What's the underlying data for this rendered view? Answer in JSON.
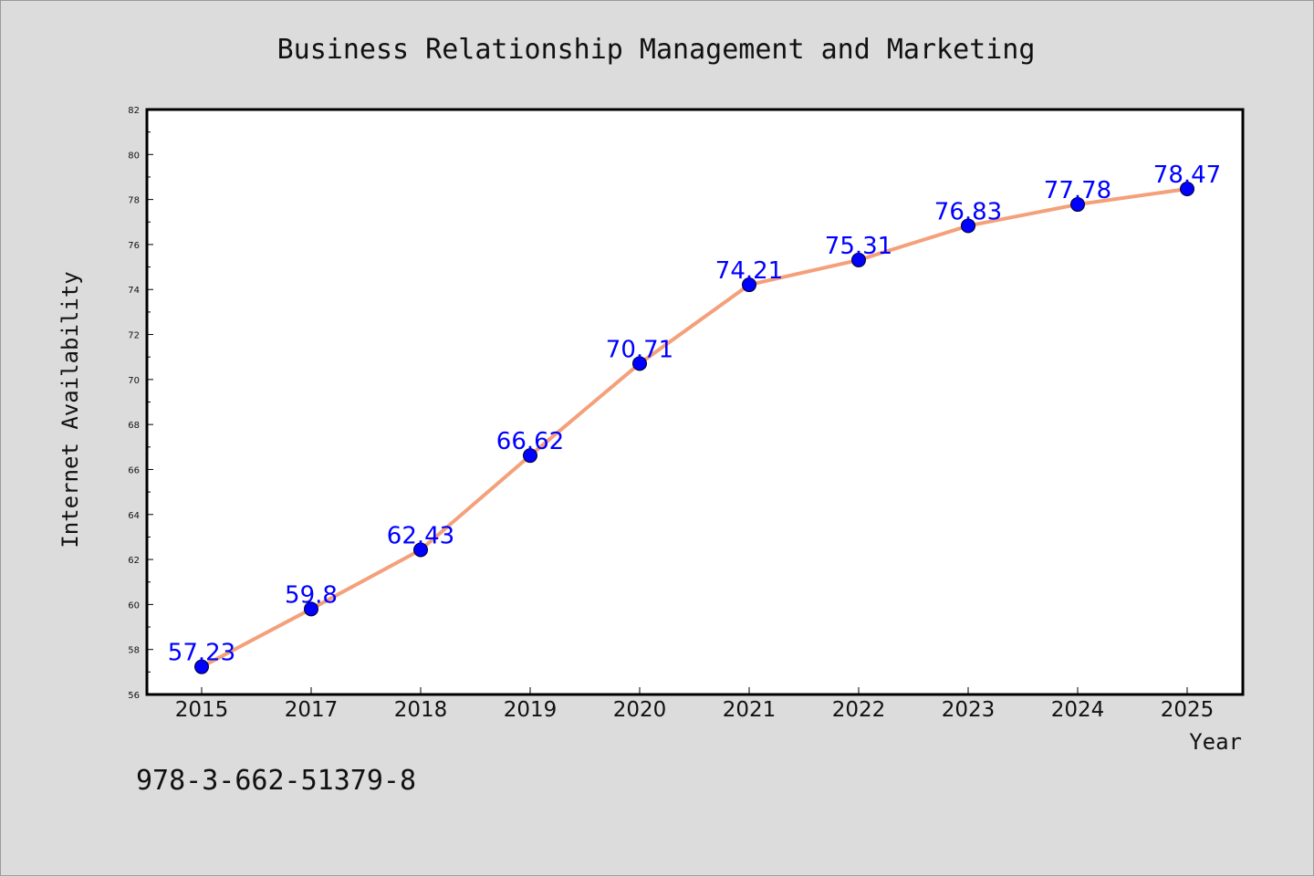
{
  "chart_data": {
    "type": "line",
    "title": "Business Relationship Management and Marketing",
    "xlabel": "Year",
    "ylabel": "Internet Availability",
    "categories": [
      "2015",
      "2017",
      "2018",
      "2019",
      "2020",
      "2021",
      "2022",
      "2023",
      "2024",
      "2025"
    ],
    "series": [
      {
        "values": [
          57.23,
          59.8,
          62.43,
          66.62,
          70.71,
          74.21,
          75.31,
          76.83,
          77.78,
          78.47
        ],
        "line_color": "#f4a07a",
        "marker_color": "#0000ff"
      }
    ],
    "data_labels": [
      "57.23",
      "59.8",
      "62.43",
      "66.62",
      "70.71",
      "74.21",
      "75.31",
      "76.83",
      "77.78",
      "78.47"
    ],
    "ylim": [
      56,
      82
    ],
    "yticks": [
      "56",
      "58",
      "60",
      "62",
      "64",
      "66",
      "68",
      "70",
      "72",
      "74",
      "76",
      "78",
      "80",
      "82"
    ],
    "grid": false,
    "legend": "none",
    "background_color": "#dcdcdc",
    "plot_background_color": "#ffffff",
    "label_color": "#0000ff"
  },
  "footer_text": "978-3-662-51379-8"
}
